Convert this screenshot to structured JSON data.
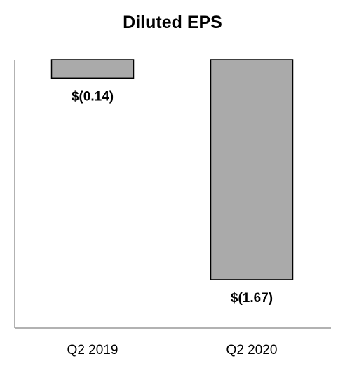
{
  "chart_data": {
    "type": "bar",
    "title": "Diluted EPS",
    "xlabel": "",
    "ylabel": "",
    "categories": [
      "Q2 2019",
      "Q2 2020"
    ],
    "values": [
      -0.14,
      -1.67
    ],
    "data_labels": [
      "$(0.14)",
      "$(1.67)"
    ],
    "ylim": [
      -1.95,
      0
    ],
    "grid": false,
    "legend": "none",
    "colors": {
      "bar_fill": "#aaaaaa",
      "bar_stroke": "#000000",
      "axis": "#999999"
    }
  }
}
